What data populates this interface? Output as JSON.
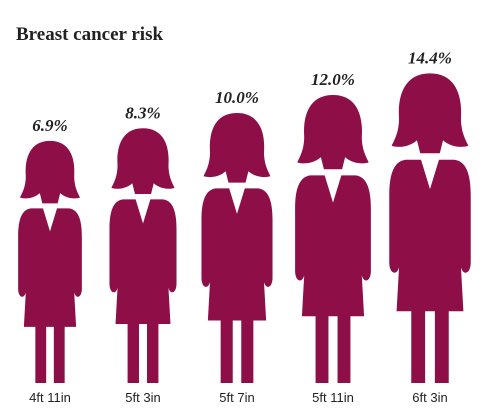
{
  "chart_data": {
    "type": "pictograph",
    "title": "Breast cancer risk",
    "categories": [
      "4ft 11in",
      "5ft 3in",
      "5ft 7in",
      "5ft 11in",
      "6ft 3in"
    ],
    "values": [
      6.9,
      8.3,
      10.0,
      12.0,
      14.4
    ],
    "value_labels": [
      "6.9%",
      "8.3%",
      "10.0%",
      "12.0%",
      "14.4%"
    ],
    "color": "#8e0f48"
  }
}
